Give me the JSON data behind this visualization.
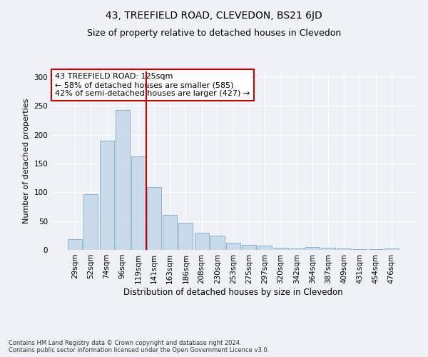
{
  "title": "43, TREEFIELD ROAD, CLEVEDON, BS21 6JD",
  "subtitle": "Size of property relative to detached houses in Clevedon",
  "xlabel": "Distribution of detached houses by size in Clevedon",
  "ylabel": "Number of detached properties",
  "categories": [
    "29sqm",
    "52sqm",
    "74sqm",
    "96sqm",
    "119sqm",
    "141sqm",
    "163sqm",
    "186sqm",
    "208sqm",
    "230sqm",
    "253sqm",
    "275sqm",
    "297sqm",
    "320sqm",
    "342sqm",
    "364sqm",
    "387sqm",
    "409sqm",
    "431sqm",
    "454sqm",
    "476sqm"
  ],
  "values": [
    19,
    97,
    190,
    243,
    162,
    109,
    61,
    47,
    30,
    25,
    13,
    9,
    7,
    4,
    3,
    5,
    4,
    2,
    1,
    1,
    2
  ],
  "bar_color": "#c9daea",
  "bar_edge_color": "#7aaac8",
  "vline_pos": 4.5,
  "vline_color": "#cc0000",
  "annotation_text": "43 TREEFIELD ROAD: 125sqm\n← 58% of detached houses are smaller (585)\n42% of semi-detached houses are larger (427) →",
  "annotation_box_facecolor": "#ffffff",
  "annotation_box_edgecolor": "#cc0000",
  "ylim": [
    0,
    310
  ],
  "background_color": "#eef2f7",
  "grid_color": "#ffffff",
  "footer_text": "Contains HM Land Registry data © Crown copyright and database right 2024.\nContains public sector information licensed under the Open Government Licence v3.0.",
  "title_fontsize": 10,
  "subtitle_fontsize": 9,
  "xlabel_fontsize": 8.5,
  "ylabel_fontsize": 8,
  "tick_fontsize": 7.5,
  "annotation_fontsize": 8,
  "footer_fontsize": 6
}
